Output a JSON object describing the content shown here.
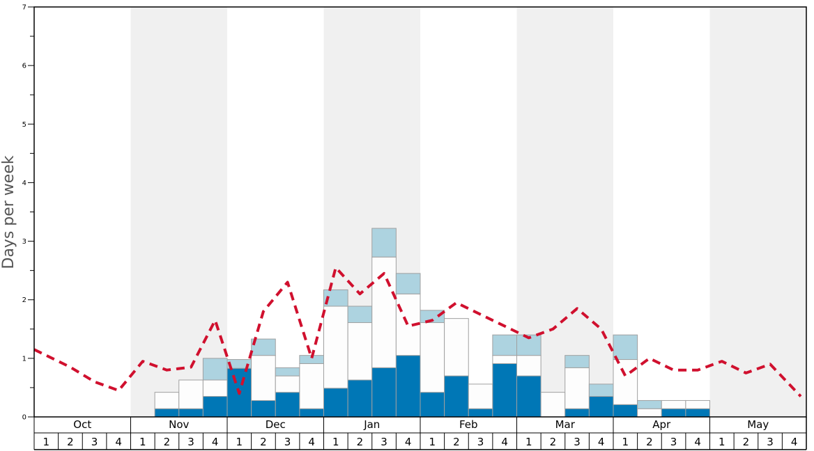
{
  "chart_data": {
    "type": "bar",
    "ylabel": "Days per week",
    "ylim": [
      0,
      7
    ],
    "yticks": [
      "0",
      "1",
      "2",
      "3",
      "4",
      "5",
      "6",
      "7"
    ],
    "months": [
      "Oct",
      "Nov",
      "Dec",
      "Jan",
      "Feb",
      "Mar",
      "Apr",
      "May"
    ],
    "week_labels": [
      "1",
      "2",
      "3",
      "4"
    ],
    "colors": {
      "dark": "#0077b6",
      "white": "#fdfdfd",
      "light": "#add3e0",
      "line": "#d0102e",
      "shade": "#f0f0f0"
    },
    "series": [
      {
        "values": [
          0,
          0,
          0,
          0,
          0,
          0.14,
          0.14,
          0.35,
          0.83,
          0.28,
          0.42,
          0.14,
          0.49,
          0.63,
          0.84,
          1.05,
          0.42,
          0.7,
          0.14,
          0.91,
          0.7,
          0,
          0.14,
          0.35,
          0.21,
          0,
          0.14,
          0.14,
          0,
          0,
          0,
          0
        ]
      },
      {
        "values": [
          0,
          0,
          0,
          0,
          0,
          0.28,
          0.49,
          0.28,
          0,
          0.77,
          0.28,
          0.77,
          1.4,
          0.98,
          1.89,
          1.05,
          1.19,
          0.98,
          0.42,
          0.14,
          0.35,
          0.42,
          0.7,
          0,
          0.77,
          0.14,
          0.14,
          0.14,
          0,
          0,
          0,
          0
        ]
      },
      {
        "values": [
          0,
          0,
          0,
          0,
          0,
          0,
          0,
          0.37,
          0.15,
          0.28,
          0.14,
          0.14,
          0.28,
          0.28,
          0.49,
          0.35,
          0.21,
          0,
          0,
          0.35,
          0.35,
          0,
          0.21,
          0.21,
          0.42,
          0.14,
          0,
          0,
          0,
          0,
          0,
          0
        ]
      },
      {
        "values": [
          1.15,
          0.85,
          0.6,
          0.45,
          0.95,
          0.8,
          0.85,
          1.65,
          0.4,
          1.8,
          2.3,
          1.0,
          2.55,
          2.1,
          2.45,
          1.55,
          1.65,
          1.95,
          1.75,
          1.55,
          1.35,
          1.5,
          1.85,
          1.5,
          0.7,
          1.0,
          0.8,
          0.8,
          0.95,
          0.75,
          0.9,
          0.35
        ]
      }
    ]
  }
}
